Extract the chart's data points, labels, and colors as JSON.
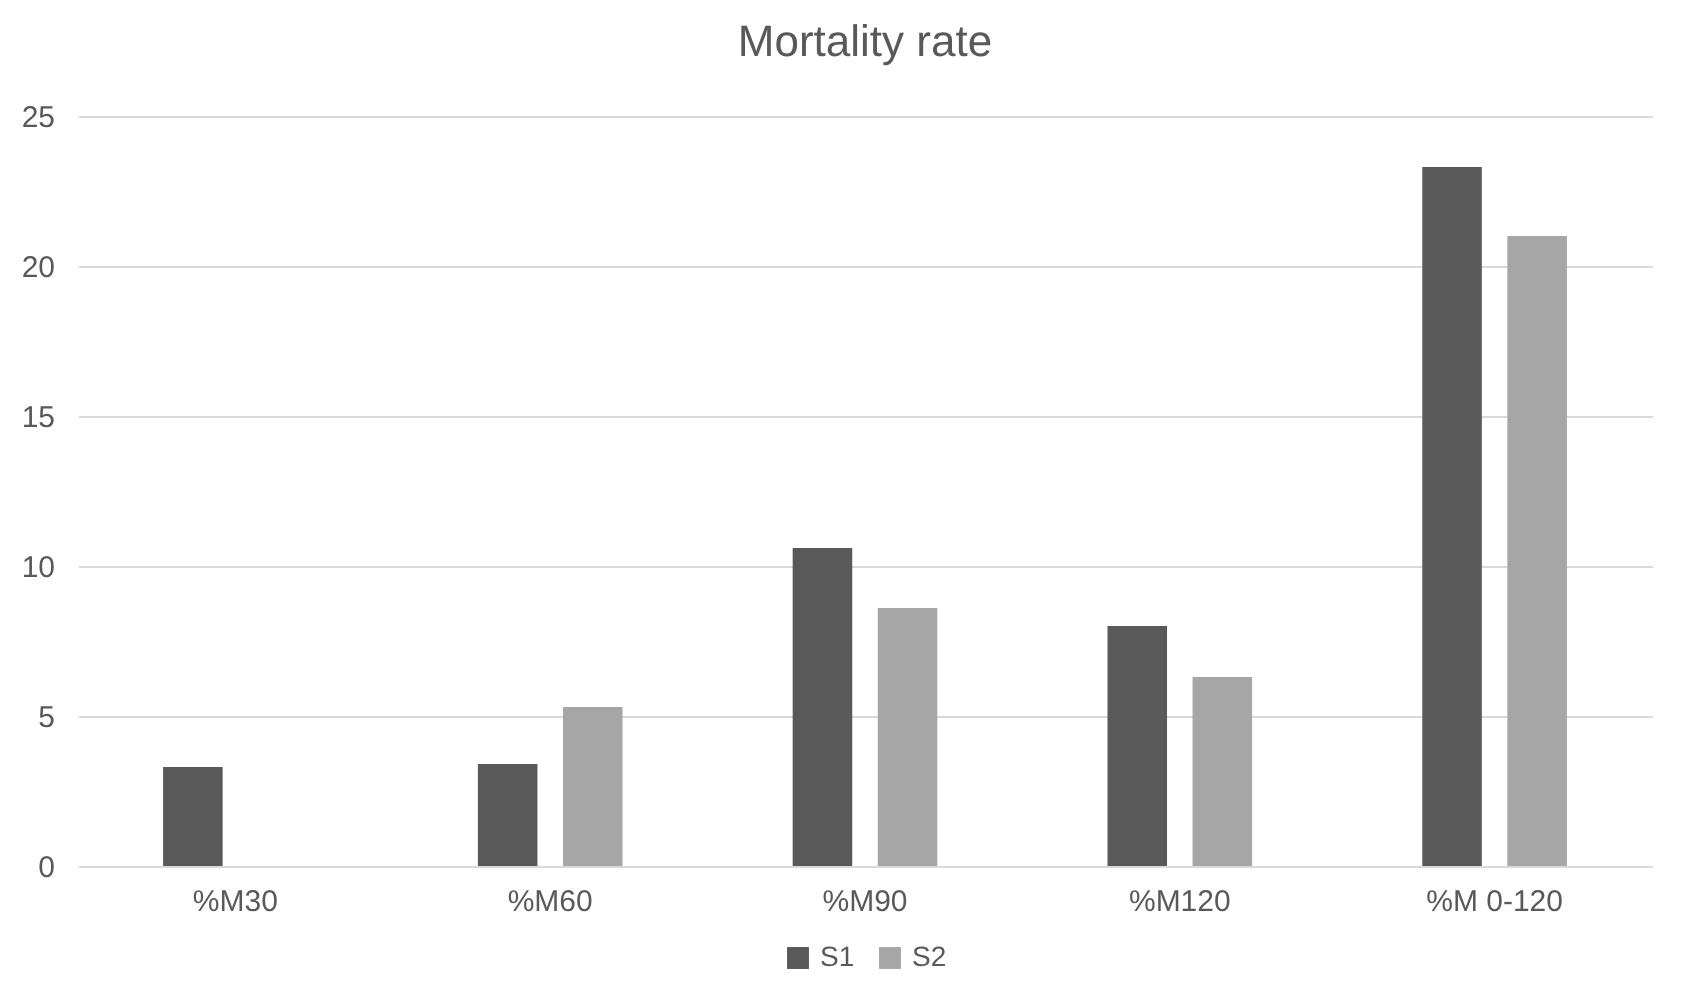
{
  "chart_data": {
    "type": "bar",
    "title": "Mortality rate",
    "categories": [
      "%M30",
      "%M60",
      "%M90",
      "%M120",
      "%M 0-120"
    ],
    "series": [
      {
        "name": "S1",
        "color": "#595959",
        "values": [
          3.3,
          3.4,
          10.6,
          8.0,
          23.3
        ]
      },
      {
        "name": "S2",
        "color": "#a6a6a6",
        "values": [
          0,
          5.3,
          8.6,
          6.3,
          21.0
        ]
      }
    ],
    "ylim": [
      0,
      25
    ],
    "yticks": [
      0,
      5,
      10,
      15,
      20,
      25
    ],
    "grid": "y",
    "legend": "bottom"
  }
}
